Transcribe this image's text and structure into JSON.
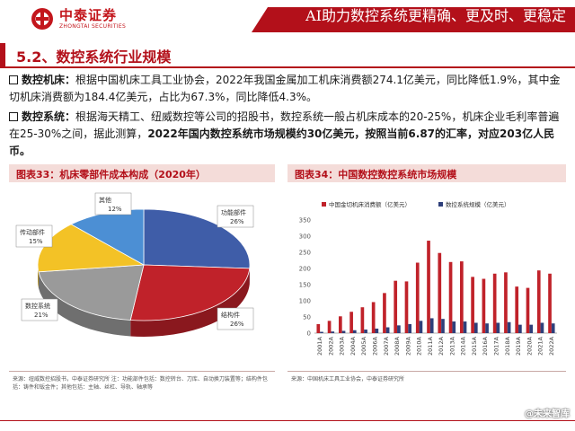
{
  "header": {
    "logo_cn": "中泰证券",
    "logo_en": "ZHONGTAI SECURITIES",
    "banner": "AI助力数控系统更精确、更及时、更稳定"
  },
  "section": {
    "title": "5.2、数控系统行业规模"
  },
  "paragraphs": {
    "p1_label": "数控机床：",
    "p1_text_a": "根据中国机床工具工业协会，2022年我国金属加工机床消费额",
    "p1_val1": "274.1",
    "p1_text_b": "亿美元，同比降低",
    "p1_val2": "1.9%",
    "p1_text_c": "，其中金切机床消费额为",
    "p1_val3": "184.4",
    "p1_text_d": "亿美元，占比为",
    "p1_val4": "67.3%",
    "p1_text_e": "，同比降低",
    "p1_val5": "4.3%",
    "p1_text_f": "。",
    "p2_label": "数控系统：",
    "p2_text_a": "根据海天精工、纽威数控等公司的招股书，数控系统一般占机床成本的",
    "p2_val1": "20-25%",
    "p2_text_b": "，机床企业毛利率普遍在",
    "p2_val2": "25-30%",
    "p2_text_c": "之间，据此测算，",
    "p2_bold": "2022年国内数控系统市场规模约30亿美元，按照当前6.87的汇率，对应203亿人民币。"
  },
  "figures": {
    "fig33_title": "图表33：机床零部件成本构成（2020年）",
    "fig34_title": "图表34：中国数控数控系统市场规模",
    "fig33_source": "来源：纽威数控招股书，中泰证券研究所  注：功能部件包括：数控转台、刀库、自动换刀装置等；结构件包括：铸件和钣金件；其他包括：主轴、丝杠、导轨、轴承等",
    "fig34_source": "来源：中国机床工具工业协会，中泰证券研究所"
  },
  "watermark": "@未来智库",
  "chart_data": [
    {
      "type": "pie",
      "title": "",
      "slices": [
        {
          "label": "功能部件",
          "value": 26,
          "display": "26%",
          "color": "#3f5da8"
        },
        {
          "label": "结构件",
          "value": 26,
          "display": "26%",
          "color": "#c0222a"
        },
        {
          "label": "数控系统",
          "value": 21,
          "display": "21%",
          "color": "#9a9a9a"
        },
        {
          "label": "传动部件",
          "value": 15,
          "display": "15%",
          "color": "#f3c226"
        },
        {
          "label": "其他",
          "value": 12,
          "display": "12%",
          "color": "#4c8fd4"
        }
      ]
    },
    {
      "type": "bar",
      "title": "",
      "categories": [
        "2001A",
        "2002A",
        "2003A",
        "2004A",
        "2005A",
        "2006A",
        "2007A",
        "2008A",
        "2009A",
        "2010A",
        "2011A",
        "2012A",
        "2013A",
        "2014A",
        "2015A",
        "2016A",
        "2017A",
        "2018A",
        "2019A",
        "2020A",
        "2021A",
        "2022A"
      ],
      "series": [
        {
          "name": "中国金切机床消费额（亿美元）",
          "color": "#c0222a",
          "values": [
            28,
            38,
            52,
            66,
            80,
            96,
            124,
            162,
            160,
            218,
            286,
            248,
            220,
            222,
            174,
            168,
            184,
            188,
            144,
            140,
            194,
            184
          ]
        },
        {
          "name": "数控系统规模（亿美元）",
          "color": "#2e3f7a",
          "values": [
            4,
            5,
            7,
            9,
            11,
            14,
            18,
            24,
            28,
            38,
            46,
            44,
            36,
            36,
            32,
            30,
            32,
            34,
            26,
            26,
            32,
            30
          ]
        }
      ],
      "yticks": [
        0,
        50,
        100,
        150,
        200,
        250,
        300,
        350
      ],
      "ylim": [
        0,
        350
      ],
      "legend": "top"
    }
  ]
}
